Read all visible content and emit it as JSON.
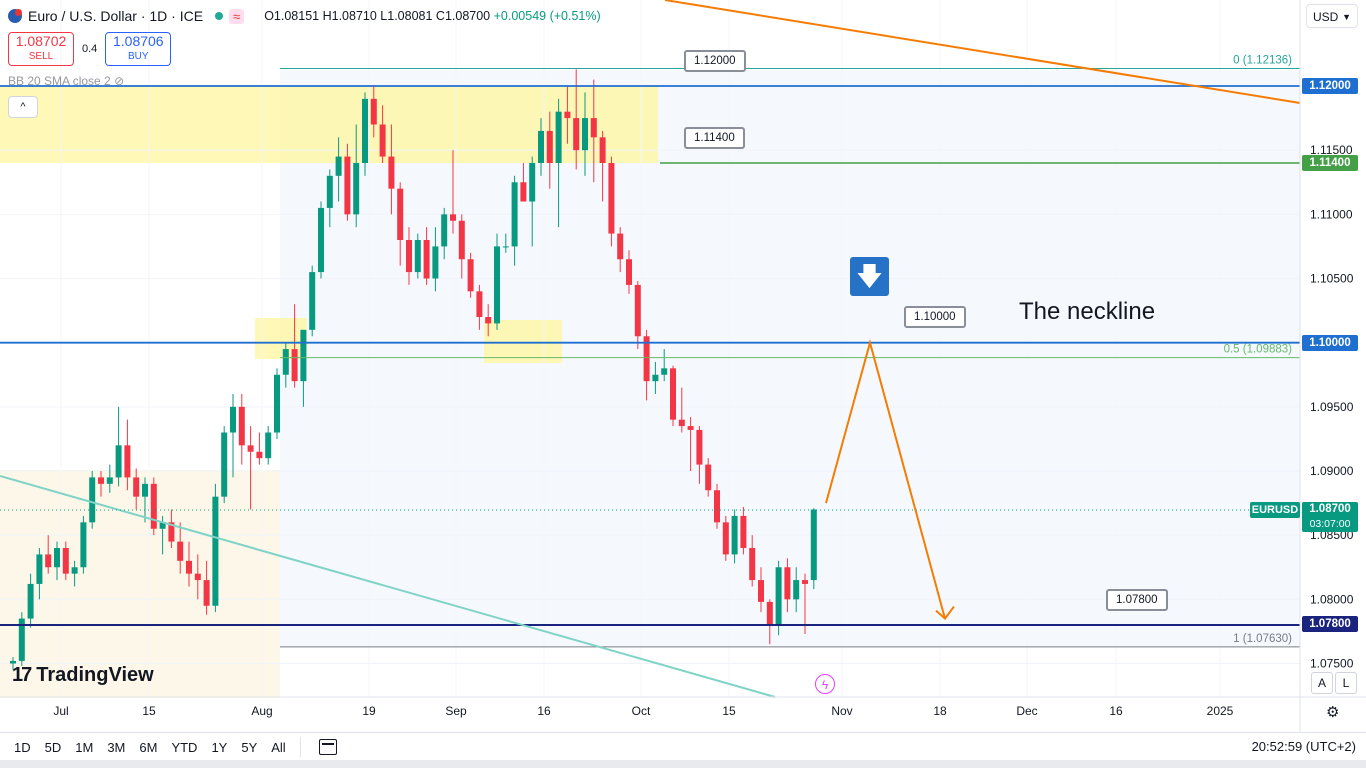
{
  "header": {
    "symbol": "Euro / U.S. Dollar · 1D · ICE",
    "open": "O1.08151",
    "high": "H1.08710",
    "low": "L1.08081",
    "close": "C1.08700",
    "change": "+0.00549 (+0.51%)",
    "indicator_label": "BB 20 SMA close 2",
    "currency": "USD"
  },
  "trade": {
    "sell_price": "1.08702",
    "sell_label": "SELL",
    "spread": "0.4",
    "buy_price": "1.08706",
    "buy_label": "BUY"
  },
  "annotations": {
    "neckline_text": "The neckline",
    "callout_112": "1.12000",
    "callout_1114": "1.11400",
    "callout_110": "1.10000",
    "callout_1078": "1.07800",
    "fib_0": "0 (1.12136)",
    "fib_05": "0.5 (1.09883)",
    "fib_1": "1 (1.07630)",
    "arrow_glyph": "🡇"
  },
  "price_tags": {
    "t112": "1.12000",
    "t1114": "1.11400",
    "t110": "1.10000",
    "t1078": "1.07800",
    "symbol_badge": "EURUSD",
    "last_price": "1.08700",
    "countdown": "03:07:00"
  },
  "colors": {
    "up": "#089981",
    "down": "#f23645",
    "orange": "#f57c00",
    "blue_line": "#1e6fd0",
    "green_line": "#43a047",
    "teal_line": "#7fd3c7",
    "yellow_zone": "#fff59d"
  },
  "branding": "TradingView",
  "timeframes": [
    "1D",
    "5D",
    "1M",
    "3M",
    "6M",
    "YTD",
    "1Y",
    "5Y",
    "All"
  ],
  "clock": "20:52:59 (UTC+2)",
  "scale_buttons": [
    "A",
    "L"
  ],
  "chart_data": {
    "type": "candlestick",
    "title": "Euro / U.S. Dollar · 1D · ICE",
    "ylim": [
      1.0745,
      1.1245
    ],
    "y_ticks": [
      "1.07500",
      "1.08000",
      "1.08500",
      "1.09000",
      "1.09500",
      "1.10000",
      "1.10500",
      "1.11000",
      "1.11500",
      "1.12000"
    ],
    "x_ticks": [
      "Jul",
      "15",
      "Aug",
      "19",
      "Sep",
      "16",
      "Oct",
      "15",
      "Nov",
      "18",
      "Dec",
      "16",
      "2025"
    ],
    "horizontal_levels": [
      1.12,
      1.114,
      1.1,
      1.078
    ],
    "fib_levels": [
      {
        "label": "0",
        "value": 1.12136
      },
      {
        "label": "0.5",
        "value": 1.09883
      },
      {
        "label": "1",
        "value": 1.0763
      }
    ],
    "projection_path": [
      1.0875,
      1.1,
      1.0785
    ],
    "candles": [
      [
        1.075,
        1.0755,
        1.0745,
        1.0752
      ],
      [
        1.0752,
        1.079,
        1.0748,
        1.0785
      ],
      [
        1.0785,
        1.082,
        1.0778,
        1.0812
      ],
      [
        1.0812,
        1.084,
        1.08,
        1.0835
      ],
      [
        1.0835,
        1.085,
        1.082,
        1.0825
      ],
      [
        1.0825,
        1.0845,
        1.0815,
        1.084
      ],
      [
        1.084,
        1.0845,
        1.0815,
        1.082
      ],
      [
        1.082,
        1.083,
        1.081,
        1.0825
      ],
      [
        1.0825,
        1.0865,
        1.082,
        1.086
      ],
      [
        1.086,
        1.09,
        1.0855,
        1.0895
      ],
      [
        1.0895,
        1.09,
        1.088,
        1.089
      ],
      [
        1.089,
        1.0905,
        1.0883,
        1.0895
      ],
      [
        1.0895,
        1.095,
        1.0888,
        1.092
      ],
      [
        1.092,
        1.094,
        1.0885,
        1.0895
      ],
      [
        1.0895,
        1.0902,
        1.087,
        1.088
      ],
      [
        1.088,
        1.0895,
        1.086,
        1.089
      ],
      [
        1.089,
        1.0895,
        1.085,
        1.0855
      ],
      [
        1.0855,
        1.0865,
        1.0835,
        1.086
      ],
      [
        1.086,
        1.087,
        1.084,
        1.0845
      ],
      [
        1.0845,
        1.086,
        1.082,
        1.083
      ],
      [
        1.083,
        1.0845,
        1.081,
        1.082
      ],
      [
        1.082,
        1.0835,
        1.08,
        1.0815
      ],
      [
        1.0815,
        1.083,
        1.0788,
        1.0795
      ],
      [
        1.0795,
        1.089,
        1.079,
        1.088
      ],
      [
        1.088,
        1.0935,
        1.0875,
        1.093
      ],
      [
        1.093,
        1.096,
        1.0895,
        1.095
      ],
      [
        1.095,
        1.096,
        1.0905,
        1.092
      ],
      [
        1.092,
        1.0935,
        1.087,
        1.0915
      ],
      [
        1.0915,
        1.093,
        1.0905,
        1.091
      ],
      [
        1.091,
        1.0935,
        1.0905,
        1.093
      ],
      [
        1.093,
        1.098,
        1.0925,
        1.0975
      ],
      [
        1.0975,
        1.1,
        1.0965,
        1.0995
      ],
      [
        1.0995,
        1.103,
        1.0965,
        1.097
      ],
      [
        1.097,
        1.101,
        1.095,
        1.101
      ],
      [
        1.101,
        1.106,
        1.1005,
        1.1055
      ],
      [
        1.1055,
        1.111,
        1.105,
        1.1105
      ],
      [
        1.1105,
        1.1135,
        1.109,
        1.113
      ],
      [
        1.113,
        1.116,
        1.111,
        1.1145
      ],
      [
        1.1145,
        1.1155,
        1.1095,
        1.11
      ],
      [
        1.11,
        1.117,
        1.109,
        1.114
      ],
      [
        1.114,
        1.1195,
        1.113,
        1.119
      ],
      [
        1.119,
        1.12,
        1.116,
        1.117
      ],
      [
        1.117,
        1.1185,
        1.114,
        1.1145
      ],
      [
        1.1145,
        1.117,
        1.11,
        1.112
      ],
      [
        1.112,
        1.1125,
        1.106,
        1.108
      ],
      [
        1.108,
        1.109,
        1.1045,
        1.1055
      ],
      [
        1.1055,
        1.1085,
        1.105,
        1.108
      ],
      [
        1.108,
        1.109,
        1.1045,
        1.105
      ],
      [
        1.105,
        1.109,
        1.104,
        1.1075
      ],
      [
        1.1075,
        1.1105,
        1.1065,
        1.11
      ],
      [
        1.11,
        1.115,
        1.1085,
        1.1095
      ],
      [
        1.1095,
        1.11,
        1.105,
        1.1065
      ],
      [
        1.1065,
        1.107,
        1.1035,
        1.104
      ],
      [
        1.104,
        1.1045,
        1.101,
        1.102
      ],
      [
        1.102,
        1.103,
        1.1005,
        1.1015
      ],
      [
        1.1015,
        1.1085,
        1.101,
        1.1075
      ],
      [
        1.1075,
        1.1085,
        1.107,
        1.1075
      ],
      [
        1.1075,
        1.113,
        1.106,
        1.1125
      ],
      [
        1.1125,
        1.114,
        1.111,
        1.111
      ],
      [
        1.111,
        1.1145,
        1.1075,
        1.114
      ],
      [
        1.114,
        1.1175,
        1.113,
        1.1165
      ],
      [
        1.1165,
        1.118,
        1.112,
        1.114
      ],
      [
        1.114,
        1.119,
        1.109,
        1.118
      ],
      [
        1.118,
        1.12,
        1.1155,
        1.1175
      ],
      [
        1.1175,
        1.1213,
        1.1135,
        1.115
      ],
      [
        1.115,
        1.1195,
        1.113,
        1.1175
      ],
      [
        1.1175,
        1.1205,
        1.1125,
        1.116
      ],
      [
        1.116,
        1.1165,
        1.111,
        1.114
      ],
      [
        1.114,
        1.1145,
        1.1075,
        1.1085
      ],
      [
        1.1085,
        1.109,
        1.1055,
        1.1065
      ],
      [
        1.1065,
        1.1072,
        1.1038,
        1.1045
      ],
      [
        1.1045,
        1.1048,
        1.0995,
        1.1005
      ],
      [
        1.1005,
        1.101,
        1.0955,
        1.097
      ],
      [
        1.097,
        1.0985,
        1.096,
        1.0975
      ],
      [
        1.0975,
        1.0995,
        1.097,
        1.098
      ],
      [
        1.098,
        1.0982,
        1.0935,
        1.094
      ],
      [
        1.094,
        1.0965,
        1.093,
        1.0935
      ],
      [
        1.0935,
        1.0942,
        1.09,
        1.0932
      ],
      [
        1.0932,
        1.0935,
        1.089,
        1.0905
      ],
      [
        1.0905,
        1.091,
        1.088,
        1.0885
      ],
      [
        1.0885,
        1.089,
        1.0855,
        1.086
      ],
      [
        1.086,
        1.0865,
        1.083,
        1.0835
      ],
      [
        1.0835,
        1.087,
        1.0828,
        1.0865
      ],
      [
        1.0865,
        1.0872,
        1.0835,
        1.084
      ],
      [
        1.084,
        1.085,
        1.081,
        1.0815
      ],
      [
        1.0815,
        1.0825,
        1.079,
        1.0798
      ],
      [
        1.0798,
        1.08,
        1.0765,
        1.078
      ],
      [
        1.078,
        1.083,
        1.0772,
        1.0825
      ],
      [
        1.0825,
        1.0832,
        1.079,
        1.08
      ],
      [
        1.08,
        1.0825,
        1.079,
        1.0815
      ],
      [
        1.0815,
        1.082,
        1.0773,
        1.0812
      ],
      [
        1.0815,
        1.0871,
        1.0808,
        1.087
      ]
    ]
  }
}
